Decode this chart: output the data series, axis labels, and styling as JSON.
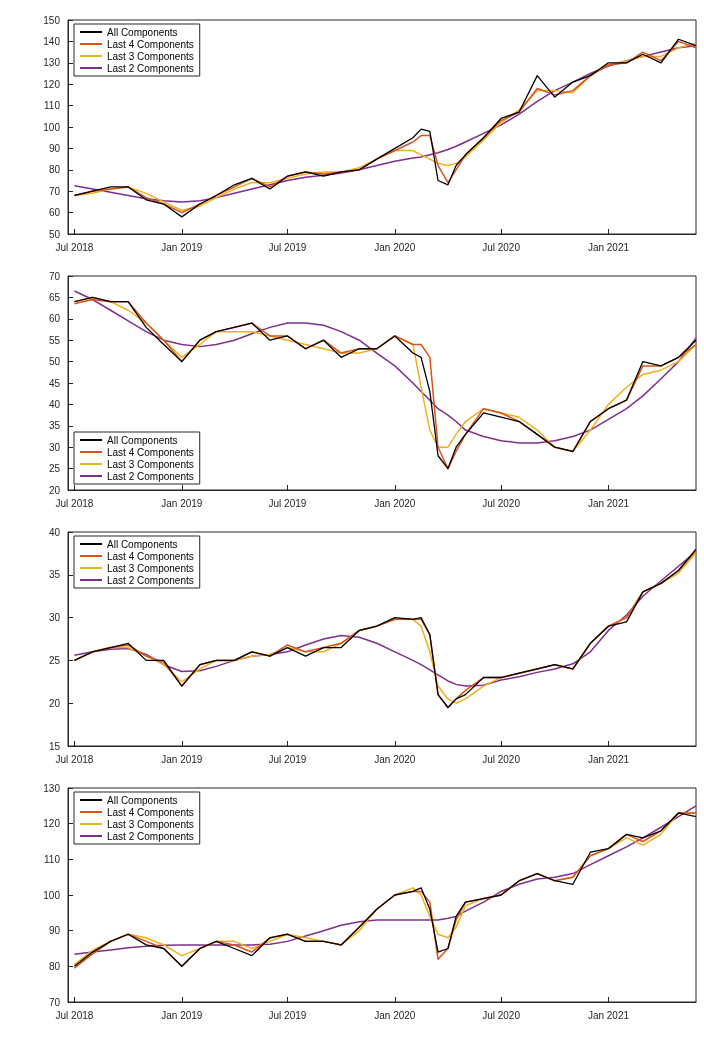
{
  "chart_data": [
    {
      "type": "line",
      "legend": "top left",
      "grid": false,
      "x": [
        "2018-07-01",
        "2018-08-01",
        "2018-09-01",
        "2018-10-01",
        "2018-11-01",
        "2018-12-01",
        "2019-01-01",
        "2019-02-01",
        "2019-03-01",
        "2019-04-01",
        "2019-05-01",
        "2019-06-01",
        "2019-07-01",
        "2019-08-01",
        "2019-09-01",
        "2019-10-01",
        "2019-11-01",
        "2019-12-01",
        "2020-01-01",
        "2020-02-01",
        "2020-02-15",
        "2020-03-01",
        "2020-03-15",
        "2020-04-01",
        "2020-04-15",
        "2020-05-01",
        "2020-06-01",
        "2020-07-01",
        "2020-08-01",
        "2020-09-01",
        "2020-10-01",
        "2020-11-01",
        "2020-12-01",
        "2021-01-01",
        "2021-02-01",
        "2021-03-01",
        "2021-04-01",
        "2021-05-01",
        "2021-05-31"
      ],
      "xlim": [
        "2018-06-20",
        "2021-05-31"
      ],
      "xticks": [
        {
          "value": "2018-07-01",
          "label": "Jul 2018"
        },
        {
          "value": "2019-01-01",
          "label": "Jan 2019"
        },
        {
          "value": "2019-07-01",
          "label": "Jul 2019"
        },
        {
          "value": "2020-01-01",
          "label": "Jan 2020"
        },
        {
          "value": "2020-07-01",
          "label": "Jul 2020"
        },
        {
          "value": "2021-01-01",
          "label": "Jan 2021"
        }
      ],
      "ylim": [
        50,
        150
      ],
      "yticks": [
        50,
        60,
        70,
        80,
        90,
        100,
        110,
        120,
        130,
        140,
        150
      ],
      "series": [
        {
          "name": "All Components",
          "color": "#000000",
          "values": [
            68,
            70,
            72,
            72,
            66,
            64,
            58,
            64,
            68,
            73,
            76,
            71,
            77,
            79,
            77,
            79,
            80,
            85,
            90,
            95,
            99,
            98,
            75,
            73,
            82,
            87,
            95,
            104,
            107,
            124,
            114,
            121,
            124,
            130,
            130,
            134,
            130,
            141,
            138
          ]
        },
        {
          "name": "Last 4 Components",
          "color": "#d95319",
          "values": [
            68,
            70,
            71,
            72,
            67,
            64,
            60,
            64,
            68,
            72,
            76,
            72,
            77,
            79,
            78,
            79,
            80,
            85,
            89,
            93,
            96,
            96,
            82,
            74,
            80,
            87,
            95,
            103,
            107,
            118,
            115,
            117,
            124,
            129,
            130,
            135,
            131,
            140,
            137
          ]
        },
        {
          "name": "Last 3 Components",
          "color": "#edb120",
          "values": [
            68,
            69,
            71,
            72,
            69,
            65,
            61,
            63,
            67,
            71,
            74,
            74,
            76,
            78,
            79,
            79,
            81,
            85,
            89,
            89,
            87,
            85,
            83,
            82,
            83,
            86,
            94,
            102,
            108,
            117,
            117,
            116,
            124,
            129,
            131,
            133,
            133,
            137,
            139
          ]
        },
        {
          "name": "Last 2 Components",
          "color": "#7e2f8e",
          "values": [
            72.5,
            71,
            69.5,
            68,
            66.5,
            65.5,
            65,
            65.5,
            67,
            69,
            71,
            73,
            75,
            76.5,
            77.5,
            78.5,
            80,
            82,
            84,
            85.5,
            86,
            87,
            88,
            89.5,
            91,
            93,
            97,
            101,
            106,
            112,
            117,
            121,
            125,
            128.5,
            131,
            133,
            135,
            137,
            138
          ]
        }
      ]
    },
    {
      "type": "line",
      "legend": "bottom left",
      "grid": false,
      "x": [
        "2018-07-01",
        "2018-08-01",
        "2018-09-01",
        "2018-10-01",
        "2018-11-01",
        "2018-12-01",
        "2019-01-01",
        "2019-02-01",
        "2019-03-01",
        "2019-04-01",
        "2019-05-01",
        "2019-06-01",
        "2019-07-01",
        "2019-08-01",
        "2019-09-01",
        "2019-10-01",
        "2019-11-01",
        "2019-12-01",
        "2020-01-01",
        "2020-02-01",
        "2020-02-15",
        "2020-03-01",
        "2020-03-15",
        "2020-04-01",
        "2020-04-15",
        "2020-05-01",
        "2020-06-01",
        "2020-07-01",
        "2020-08-01",
        "2020-09-01",
        "2020-10-01",
        "2020-11-01",
        "2020-12-01",
        "2021-01-01",
        "2021-02-01",
        "2021-03-01",
        "2021-04-01",
        "2021-05-01",
        "2021-05-31"
      ],
      "xlim": [
        "2018-06-20",
        "2021-05-31"
      ],
      "xticks": [
        {
          "value": "2018-07-01",
          "label": "Jul 2018"
        },
        {
          "value": "2019-01-01",
          "label": "Jan 2019"
        },
        {
          "value": "2019-07-01",
          "label": "Jul 2019"
        },
        {
          "value": "2020-01-01",
          "label": "Jan 2020"
        },
        {
          "value": "2020-07-01",
          "label": "Jul 2020"
        },
        {
          "value": "2021-01-01",
          "label": "Jan 2021"
        }
      ],
      "ylim": [
        20,
        70
      ],
      "yticks": [
        20,
        25,
        30,
        35,
        40,
        45,
        50,
        55,
        60,
        65,
        70
      ],
      "series": [
        {
          "name": "All Components",
          "color": "#000000",
          "values": [
            64,
            65,
            64,
            64,
            58,
            54,
            50,
            55,
            57,
            58,
            59,
            55,
            56,
            53,
            55,
            51,
            53,
            53,
            56,
            52,
            51,
            43,
            28,
            25,
            30,
            33,
            38,
            37,
            36,
            33,
            30,
            29,
            36,
            39,
            41,
            50,
            49,
            51,
            55
          ]
        },
        {
          "name": "Last 4 Components",
          "color": "#d95319",
          "values": [
            63.5,
            64.5,
            64,
            64,
            59,
            55,
            50,
            55,
            57,
            58,
            59,
            56,
            56,
            53,
            55,
            52,
            53,
            53,
            56,
            54,
            54,
            51,
            30,
            25,
            29,
            33,
            39,
            38,
            36,
            33,
            30,
            29,
            36,
            39,
            41,
            49,
            49,
            51,
            54
          ]
        },
        {
          "name": "Last 3 Components",
          "color": "#edb120",
          "values": [
            64,
            65,
            64,
            62,
            59,
            55,
            51,
            54,
            57,
            57,
            57,
            56,
            55,
            54,
            53,
            52,
            52,
            53,
            56,
            54,
            44,
            34,
            30,
            30,
            33,
            36,
            39,
            38,
            37,
            34,
            30,
            29,
            34,
            40,
            44,
            47,
            48,
            50,
            54
          ]
        },
        {
          "name": "Last 2 Components",
          "color": "#7e2f8e",
          "values": [
            66.5,
            64.5,
            62,
            59.5,
            57,
            55,
            54,
            53.5,
            54,
            55,
            56.5,
            58,
            59,
            59,
            58.5,
            57,
            55,
            52,
            49,
            45,
            43,
            41,
            39,
            37.5,
            36,
            34,
            32.5,
            31.5,
            31,
            31,
            31.5,
            32.5,
            34,
            36.5,
            39,
            42,
            46,
            50,
            55.5
          ]
        }
      ]
    },
    {
      "type": "line",
      "legend": "top left",
      "grid": false,
      "x": [
        "2018-07-01",
        "2018-08-01",
        "2018-09-01",
        "2018-10-01",
        "2018-11-01",
        "2018-12-01",
        "2019-01-01",
        "2019-02-01",
        "2019-03-01",
        "2019-04-01",
        "2019-05-01",
        "2019-06-01",
        "2019-07-01",
        "2019-08-01",
        "2019-09-01",
        "2019-10-01",
        "2019-11-01",
        "2019-12-01",
        "2020-01-01",
        "2020-02-01",
        "2020-02-15",
        "2020-03-01",
        "2020-03-15",
        "2020-04-01",
        "2020-04-15",
        "2020-05-01",
        "2020-06-01",
        "2020-07-01",
        "2020-08-01",
        "2020-09-01",
        "2020-10-01",
        "2020-11-01",
        "2020-12-01",
        "2021-01-01",
        "2021-02-01",
        "2021-03-01",
        "2021-04-01",
        "2021-05-01",
        "2021-05-31"
      ],
      "xlim": [
        "2018-06-20",
        "2021-05-31"
      ],
      "xticks": [
        {
          "value": "2018-07-01",
          "label": "Jul 2018"
        },
        {
          "value": "2019-01-01",
          "label": "Jan 2019"
        },
        {
          "value": "2019-07-01",
          "label": "Jul 2019"
        },
        {
          "value": "2020-01-01",
          "label": "Jan 2020"
        },
        {
          "value": "2020-07-01",
          "label": "Jul 2020"
        },
        {
          "value": "2021-01-01",
          "label": "Jan 2021"
        }
      ],
      "ylim": [
        15,
        40
      ],
      "yticks": [
        15,
        20,
        25,
        30,
        35,
        40
      ],
      "series": [
        {
          "name": "All Components",
          "color": "#000000",
          "values": [
            25,
            26,
            26.5,
            27,
            25,
            25,
            22,
            24.5,
            25,
            25,
            26,
            25.5,
            26.5,
            25.5,
            26.5,
            26.5,
            28.5,
            29,
            30,
            29.8,
            30,
            28,
            21,
            19.5,
            20.5,
            21,
            23,
            23,
            23.5,
            24,
            24.5,
            24,
            27,
            29,
            29.5,
            33,
            34,
            35.5,
            38
          ]
        },
        {
          "name": "Last 4 Components",
          "color": "#d95319",
          "values": [
            25,
            26,
            26.5,
            26.8,
            25.5,
            24.8,
            22,
            24.5,
            25,
            25,
            26,
            25.5,
            26.8,
            26,
            26.5,
            27,
            28.5,
            29,
            29.8,
            29.8,
            29.8,
            28,
            21,
            19.5,
            20.5,
            21.5,
            23,
            23,
            23.5,
            24,
            24.5,
            24,
            27,
            29,
            30,
            33,
            34,
            35.5,
            37.8
          ]
        },
        {
          "name": "Last 3 Components",
          "color": "#edb120",
          "values": [
            25,
            26,
            26.5,
            26.5,
            25.5,
            24.5,
            22.5,
            24,
            25,
            25,
            25.5,
            25.7,
            26.5,
            26,
            26,
            27,
            28.5,
            29,
            29.8,
            29.8,
            29,
            26,
            22,
            20.5,
            20,
            20.5,
            22,
            23,
            23.5,
            24,
            24.5,
            24,
            27,
            29,
            30,
            33,
            34,
            35.2,
            37.6
          ]
        },
        {
          "name": "Last 2 Components",
          "color": "#7e2f8e",
          "values": [
            25.6,
            26,
            26.3,
            26.4,
            25.7,
            24.5,
            23.7,
            23.8,
            24.3,
            25,
            25.5,
            25.7,
            26,
            26.8,
            27.5,
            27.9,
            27.7,
            27,
            26,
            25,
            24.5,
            23.9,
            23.3,
            22.6,
            22.2,
            22,
            22.1,
            22.7,
            23.1,
            23.6,
            24,
            24.6,
            26,
            28.5,
            30.3,
            32.5,
            34.3,
            36,
            37.7
          ]
        }
      ]
    },
    {
      "type": "line",
      "legend": "top left",
      "grid": false,
      "x": [
        "2018-07-01",
        "2018-08-01",
        "2018-09-01",
        "2018-10-01",
        "2018-11-01",
        "2018-12-01",
        "2019-01-01",
        "2019-02-01",
        "2019-03-01",
        "2019-04-01",
        "2019-05-01",
        "2019-06-01",
        "2019-07-01",
        "2019-08-01",
        "2019-09-01",
        "2019-10-01",
        "2019-11-01",
        "2019-12-01",
        "2020-01-01",
        "2020-02-01",
        "2020-02-15",
        "2020-03-01",
        "2020-03-15",
        "2020-04-01",
        "2020-04-15",
        "2020-05-01",
        "2020-06-01",
        "2020-07-01",
        "2020-08-01",
        "2020-09-01",
        "2020-10-01",
        "2020-11-01",
        "2020-12-01",
        "2021-01-01",
        "2021-02-01",
        "2021-03-01",
        "2021-04-01",
        "2021-05-01",
        "2021-05-31"
      ],
      "xlim": [
        "2018-06-20",
        "2021-05-31"
      ],
      "xticks": [
        {
          "value": "2018-07-01",
          "label": "Jul 2018"
        },
        {
          "value": "2019-01-01",
          "label": "Jan 2019"
        },
        {
          "value": "2019-07-01",
          "label": "Jul 2019"
        },
        {
          "value": "2020-01-01",
          "label": "Jan 2020"
        },
        {
          "value": "2020-07-01",
          "label": "Jul 2020"
        },
        {
          "value": "2021-01-01",
          "label": "Jan 2021"
        }
      ],
      "ylim": [
        70,
        130
      ],
      "yticks": [
        70,
        80,
        90,
        100,
        110,
        120,
        130
      ],
      "series": [
        {
          "name": "All Components",
          "color": "#000000",
          "values": [
            80,
            84,
            87,
            89,
            86,
            85,
            80,
            85,
            87,
            85,
            83,
            88,
            89,
            87,
            87,
            86,
            91,
            96,
            100,
            101,
            102,
            96,
            84,
            85,
            94,
            98,
            99,
            100,
            104,
            106,
            104,
            103,
            112,
            113,
            117,
            116,
            118,
            123,
            122
          ]
        },
        {
          "name": "Last 4 Components",
          "color": "#d95319",
          "values": [
            79.5,
            83.5,
            87,
            89,
            87,
            85,
            80,
            85,
            87,
            86,
            84,
            88,
            89,
            87,
            87,
            86,
            91,
            96,
            100,
            101,
            101,
            98,
            82,
            85,
            93,
            98,
            99,
            100,
            104,
            106,
            104,
            105,
            111,
            113,
            117,
            115,
            118,
            123,
            123
          ]
        },
        {
          "name": "Last 3 Components",
          "color": "#edb120",
          "values": [
            80.5,
            84.5,
            87,
            89,
            88,
            86,
            83,
            85,
            87,
            87,
            85,
            87,
            89,
            88,
            87,
            86,
            90,
            96,
            100,
            102,
            100,
            94,
            89,
            88,
            91,
            97,
            99,
            100,
            104,
            106,
            104,
            105,
            111,
            113,
            116,
            114,
            117,
            123,
            123
          ]
        },
        {
          "name": "Last 2 Components",
          "color": "#7e2f8e",
          "values": [
            83.4,
            84,
            84.6,
            85.2,
            85.6,
            85.9,
            86,
            86,
            86,
            86,
            86,
            86.2,
            87,
            88.5,
            90,
            91.5,
            92.5,
            93,
            93,
            93,
            93,
            93,
            93,
            93.5,
            94,
            95.5,
            98,
            101,
            103,
            104.5,
            105,
            106,
            108.5,
            111,
            113.5,
            116,
            119,
            122,
            125
          ]
        }
      ]
    }
  ]
}
